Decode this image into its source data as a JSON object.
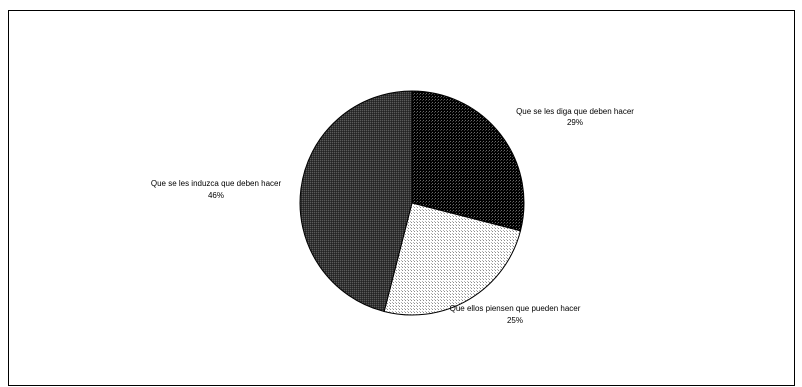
{
  "chart_data": {
    "type": "pie",
    "slices": [
      {
        "label": "Que se les diga que deben hacer",
        "value": 29,
        "value_label": "29%",
        "pattern": "dark-dots",
        "fill": "#0a0a0a"
      },
      {
        "label": "Que ellos piensen que pueden hacer",
        "value": 25,
        "value_label": "25%",
        "pattern": "light-dots",
        "fill": "#e6e6e6"
      },
      {
        "label": "Que se les induzca que deben hacer",
        "value": 46,
        "value_label": "46%",
        "pattern": "medium-dots",
        "fill": "#3a3a3a"
      }
    ],
    "start": "top",
    "direction": "clockwise",
    "legend": "none",
    "title": ""
  }
}
